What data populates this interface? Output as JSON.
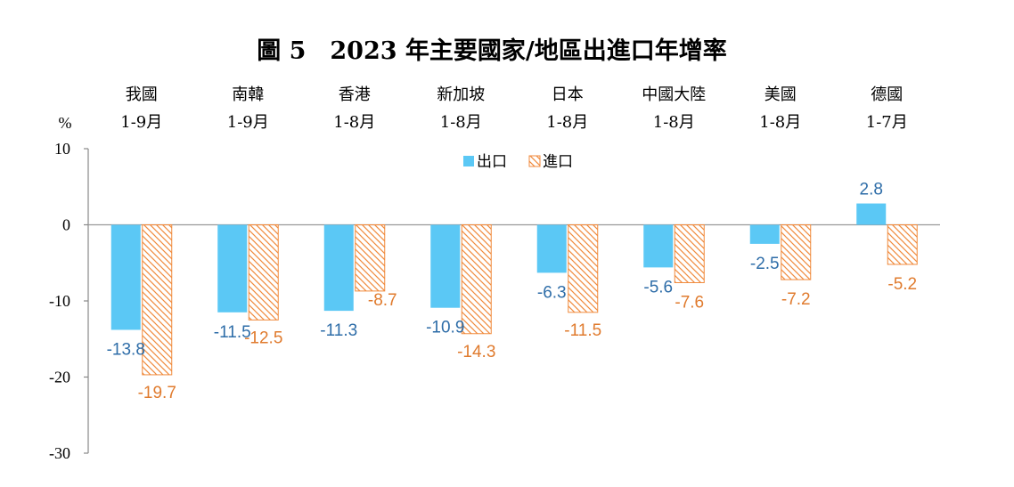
{
  "colors": {
    "export": "#5bc8f5",
    "import": "#f08a3c",
    "export_label": "#2e6da8",
    "import_label": "#e07b2e"
  },
  "chart_data": {
    "type": "bar",
    "title": "圖 5　2023 年主要國家/地區出進口年增率",
    "ylabel": "%",
    "ylim": [
      -30,
      10
    ],
    "yticks": [
      10,
      0,
      -10,
      -20,
      -30
    ],
    "categories": [
      {
        "name": "我國",
        "period": "1-9月"
      },
      {
        "name": "南韓",
        "period": "1-9月"
      },
      {
        "name": "香港",
        "period": "1-8月"
      },
      {
        "name": "新加坡",
        "period": "1-8月"
      },
      {
        "name": "日本",
        "period": "1-8月"
      },
      {
        "name": "中國大陸",
        "period": "1-8月"
      },
      {
        "name": "美國",
        "period": "1-8月"
      },
      {
        "name": "德國",
        "period": "1-7月"
      }
    ],
    "series": [
      {
        "name": "出口",
        "values": [
          -13.8,
          -11.5,
          -11.3,
          -10.9,
          -6.3,
          -5.6,
          -2.5,
          2.8
        ]
      },
      {
        "name": "進口",
        "values": [
          -19.7,
          -12.5,
          -8.7,
          -14.3,
          -11.5,
          -7.6,
          -7.2,
          -5.2
        ]
      }
    ]
  }
}
